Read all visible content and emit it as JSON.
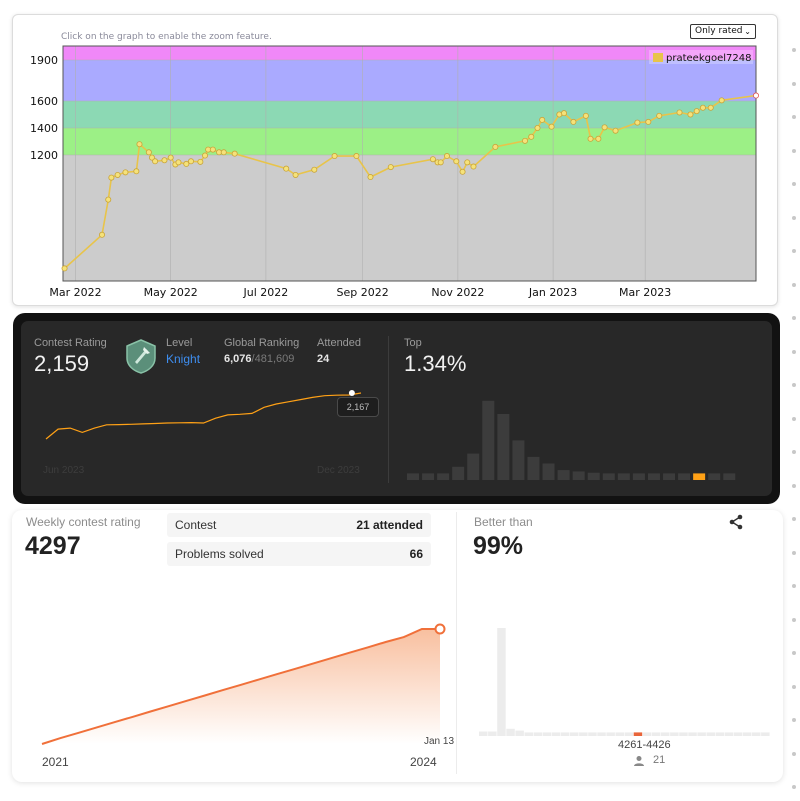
{
  "codeforces": {
    "hint": "Click on the graph to enable the zoom feature.",
    "select_value": "Only rated",
    "legend_handle": "prateekgoel7248",
    "colors": {
      "line": "#e8c44a",
      "point_fill": "#f5e27a",
      "last_point": "#e05050"
    }
  },
  "leetcode": {
    "rating_label": "Contest Rating",
    "rating_value": "2,159",
    "level_label": "Level",
    "level_value": "Knight",
    "ranking_label": "Global Ranking",
    "ranking_value": "6,076",
    "ranking_total": "/481,609",
    "attended_label": "Attended",
    "attended_value": "24",
    "top_label": "Top",
    "top_value": "1.34%",
    "tooltip_value": "2,167",
    "x_start": "Jun 2023",
    "x_end": "Dec 2023",
    "badge_icon": "knight-badge-icon",
    "colors": {
      "line": "#ffa116",
      "bars": "#3c3c3c",
      "highlight_bar": "#ffa116",
      "level": "#3e8ef0"
    }
  },
  "weekly": {
    "title": "Weekly contest rating",
    "value": "4297",
    "contest_label": "Contest",
    "contest_value": "21 attended",
    "problems_label": "Problems solved",
    "problems_value": "66",
    "x_start": "2021",
    "x_end": "2024",
    "tip_date": "Jan 13",
    "better_label": "Better than",
    "better_value": "99%",
    "range_label": "4261-4426",
    "user_count": "21",
    "share_icon": "share-icon",
    "colors": {
      "line": "#f0703a",
      "area": "#f7b48e",
      "bars": "#ececec",
      "highlight_bar": "#e8653a"
    }
  },
  "chart_data": [
    {
      "type": "line",
      "x_ticks": [
        "Mar 2022",
        "May 2022",
        "Jul 2022",
        "Sep 2022",
        "Nov 2022",
        "Jan 2023",
        "Mar 2023"
      ],
      "y_ticks": [
        1200,
        1400,
        1600,
        1900
      ],
      "ylim": [
        0,
        2000
      ],
      "bands": [
        {
          "from": 0,
          "to": 1200,
          "color": "#cccccc"
        },
        {
          "from": 1200,
          "to": 1400,
          "color": "#9cf086"
        },
        {
          "from": 1400,
          "to": 1600,
          "color": "#8cd9b4"
        },
        {
          "from": 1600,
          "to": 1900,
          "color": "#aaaaff"
        },
        {
          "from": 1900,
          "to": 2000,
          "color": "#f088f8"
        }
      ],
      "series": [
        {
          "name": "prateekgoel7248",
          "points": [
            [
              "2022-02-22",
              120
            ],
            [
              "2022-03-18",
              440
            ],
            [
              "2022-03-22",
              775
            ],
            [
              "2022-03-24",
              985
            ],
            [
              "2022-03-28",
              1010
            ],
            [
              "2022-04-02",
              1035
            ],
            [
              "2022-04-09",
              1045
            ],
            [
              "2022-04-11",
              1280
            ],
            [
              "2022-04-17",
              1220
            ],
            [
              "2022-04-19",
              1175
            ],
            [
              "2022-04-21",
              1140
            ],
            [
              "2022-04-27",
              1150
            ],
            [
              "2022-05-01",
              1175
            ],
            [
              "2022-05-04",
              1110
            ],
            [
              "2022-05-06",
              1130
            ],
            [
              "2022-05-11",
              1115
            ],
            [
              "2022-05-14",
              1140
            ],
            [
              "2022-05-20",
              1135
            ],
            [
              "2022-05-23",
              1195
            ],
            [
              "2022-05-25",
              1240
            ],
            [
              "2022-05-28",
              1240
            ],
            [
              "2022-06-01",
              1220
            ],
            [
              "2022-06-04",
              1220
            ],
            [
              "2022-06-11",
              1210
            ],
            [
              "2022-07-14",
              1070
            ],
            [
              "2022-07-20",
              1010
            ],
            [
              "2022-08-01",
              1060
            ],
            [
              "2022-08-14",
              1190
            ],
            [
              "2022-08-28",
              1190
            ],
            [
              "2022-09-06",
              990
            ],
            [
              "2022-09-19",
              1085
            ],
            [
              "2022-10-16",
              1160
            ],
            [
              "2022-10-19",
              1130
            ],
            [
              "2022-10-21",
              1130
            ],
            [
              "2022-10-25",
              1190
            ],
            [
              "2022-10-31",
              1140
            ],
            [
              "2022-11-04",
              1040
            ],
            [
              "2022-11-07",
              1130
            ],
            [
              "2022-11-11",
              1090
            ],
            [
              "2022-11-25",
              1260
            ],
            [
              "2022-12-14",
              1305
            ],
            [
              "2022-12-18",
              1335
            ],
            [
              "2022-12-22",
              1400
            ],
            [
              "2022-12-25",
              1460
            ],
            [
              "2022-12-31",
              1410
            ],
            [
              "2023-01-05",
              1500
            ],
            [
              "2023-01-08",
              1510
            ],
            [
              "2023-01-14",
              1445
            ],
            [
              "2023-01-22",
              1490
            ],
            [
              "2023-01-25",
              1320
            ],
            [
              "2023-01-30",
              1320
            ],
            [
              "2023-02-03",
              1405
            ],
            [
              "2023-02-10",
              1380
            ],
            [
              "2023-02-24",
              1440
            ],
            [
              "2023-03-03",
              1445
            ],
            [
              "2023-03-10",
              1490
            ],
            [
              "2023-03-23",
              1515
            ],
            [
              "2023-03-30",
              1500
            ],
            [
              "2023-04-03",
              1525
            ],
            [
              "2023-04-07",
              1550
            ],
            [
              "2023-04-12",
              1550
            ],
            [
              "2023-04-19",
              1605
            ],
            [
              "2023-05-11",
              1640
            ]
          ]
        }
      ]
    },
    {
      "type": "line",
      "x_ticks": [
        "Jun 2023",
        "Dec 2023"
      ],
      "series": [
        {
          "name": "Contest Rating",
          "values": [
            1765,
            1810,
            1815,
            1795,
            1815,
            1830,
            1831,
            1832,
            1834,
            1836,
            1838,
            1839,
            1840,
            1838,
            1860,
            1875,
            1878,
            1882,
            1910,
            1925,
            1935,
            1945,
            1955,
            1963,
            1965,
            1966,
            2167
          ]
        }
      ]
    },
    {
      "type": "bar",
      "title": "Top",
      "values": [
        1,
        1,
        1,
        2,
        4,
        12,
        10,
        6,
        3.5,
        2.5,
        1.5,
        1.3,
        1.1,
        1,
        1,
        1,
        1,
        1,
        1,
        1,
        1,
        1
      ],
      "highlight_index": 19
    },
    {
      "type": "area",
      "x_ticks": [
        "2021",
        "2024"
      ],
      "series": [
        {
          "name": "Weekly contest rating",
          "values": [
            1500,
            1640,
            1770,
            1900,
            2030,
            2160,
            2290,
            2420,
            2550,
            2680,
            2810,
            2940,
            3070,
            3200,
            3330,
            3460,
            3590,
            3720,
            3850,
            3980,
            4100,
            4297,
            4297
          ]
        }
      ]
    },
    {
      "type": "bar",
      "title": "Better than",
      "values": [
        1,
        1,
        24,
        1.6,
        1.2,
        0.8,
        0.8,
        0.8,
        0.8,
        0.8,
        0.8,
        0.8,
        0.8,
        0.8,
        0.8,
        0.8,
        0.8,
        0.8,
        0.8,
        0.8,
        0.8,
        0.8,
        0.8,
        0.8,
        0.8,
        0.8,
        0.8,
        0.8,
        0.8,
        0.8,
        0.8,
        0.8
      ],
      "highlight_index": 17
    }
  ]
}
